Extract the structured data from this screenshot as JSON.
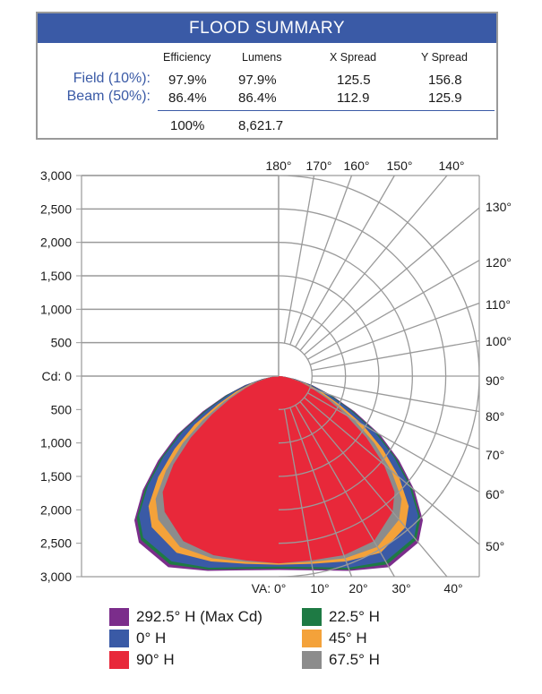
{
  "summary": {
    "title": "FLOOD SUMMARY",
    "headers": [
      "Efficiency",
      "Lumens",
      "X Spread",
      "Y Spread"
    ],
    "rows": [
      {
        "label": "Field (10%):",
        "values": [
          "97.9%",
          "97.9%",
          "125.5",
          "156.8"
        ]
      },
      {
        "label": "Beam (50%):",
        "values": [
          "86.4%",
          "86.4%",
          "112.9",
          "125.9"
        ]
      }
    ],
    "totals": [
      "100%",
      "8,621.7"
    ]
  },
  "chart_data": {
    "type": "polar-candela",
    "y_tick_labels": [
      "3,000",
      "2,500",
      "2,000",
      "1,500",
      "1,000",
      "500",
      "Cd: 0",
      "500",
      "1,000",
      "1,500",
      "2,000",
      "2,500",
      "3,000"
    ],
    "cd_range": [
      0,
      3000
    ],
    "angle_labels_top": [
      "180°",
      "170°",
      "160°",
      "150°",
      "140°"
    ],
    "angle_labels_right": [
      "130°",
      "120°",
      "110°",
      "100°",
      "90°",
      "80°",
      "70°",
      "60°",
      "50°"
    ],
    "angle_labels_bottom": [
      "VA: 0°",
      "10°",
      "20°",
      "30°",
      "40°"
    ],
    "grid": true,
    "series": [
      {
        "name": "292.5° H (Max Cd)",
        "color": "#7b2d8b",
        "angles": [
          0,
          10,
          20,
          30,
          40,
          45,
          50,
          55,
          60,
          65,
          70,
          75,
          80,
          85,
          90
        ],
        "values": [
          2900,
          2950,
          3100,
          3300,
          3250,
          3050,
          2650,
          2200,
          1750,
          1250,
          850,
          520,
          250,
          90,
          0
        ]
      },
      {
        "name": "22.5° H",
        "color": "#1e7a44",
        "angles": [
          0,
          10,
          20,
          30,
          40,
          45,
          50,
          55,
          60,
          65,
          70,
          75,
          80,
          85,
          90
        ],
        "values": [
          2880,
          2930,
          3080,
          3250,
          3200,
          3000,
          2600,
          2150,
          1700,
          1200,
          820,
          500,
          240,
          85,
          0
        ]
      },
      {
        "name": "0° H",
        "color": "#3a5aa6",
        "angles": [
          0,
          10,
          20,
          30,
          40,
          45,
          50,
          55,
          60,
          65,
          70,
          75,
          80,
          85,
          90
        ],
        "values": [
          2850,
          2900,
          3050,
          3200,
          3150,
          2950,
          2550,
          2100,
          1650,
          1150,
          780,
          480,
          230,
          80,
          0
        ]
      },
      {
        "name": "45° H",
        "color": "#f4a23a",
        "angles": [
          0,
          10,
          20,
          30,
          40,
          45,
          50,
          55,
          60,
          65,
          70,
          75,
          80,
          85,
          90
        ],
        "values": [
          2820,
          2850,
          2950,
          3050,
          2950,
          2750,
          2350,
          1900,
          1450,
          1000,
          680,
          420,
          200,
          70,
          0
        ]
      },
      {
        "name": "67.5° H",
        "color": "#8c8c8c",
        "angles": [
          0,
          10,
          20,
          30,
          40,
          45,
          50,
          55,
          60,
          65,
          70,
          75,
          80,
          85,
          90
        ],
        "values": [
          2800,
          2820,
          2900,
          2950,
          2800,
          2600,
          2200,
          1750,
          1300,
          900,
          600,
          380,
          180,
          60,
          0
        ]
      },
      {
        "name": "90° H",
        "color": "#e8283a",
        "angles": [
          0,
          10,
          20,
          30,
          40,
          45,
          50,
          55,
          60,
          65,
          70,
          75,
          80,
          85,
          90
        ],
        "values": [
          2800,
          2800,
          2850,
          2850,
          2650,
          2450,
          2050,
          1600,
          1150,
          800,
          520,
          330,
          160,
          50,
          0
        ]
      }
    ],
    "legend_order": [
      "292.5° H (Max Cd)",
      "22.5° H",
      "0° H",
      "45° H",
      "90° H",
      "67.5° H"
    ],
    "legend_placement": "bottom"
  }
}
